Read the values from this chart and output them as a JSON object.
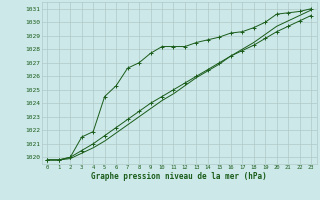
{
  "title": "Graphe pression niveau de la mer (hPa)",
  "background_color": "#cce8e8",
  "grid_color": "#b0c8c8",
  "line_color": "#1a5c1a",
  "xlim": [
    -0.5,
    23.5
  ],
  "ylim": [
    1019.5,
    1031.5
  ],
  "xticks": [
    0,
    1,
    2,
    3,
    4,
    5,
    6,
    7,
    8,
    9,
    10,
    11,
    12,
    13,
    14,
    15,
    16,
    17,
    18,
    19,
    20,
    21,
    22,
    23
  ],
  "yticks": [
    1020,
    1021,
    1022,
    1023,
    1024,
    1025,
    1026,
    1027,
    1028,
    1029,
    1030,
    1031
  ],
  "series1_x": [
    0,
    1,
    2,
    3,
    4,
    5,
    6,
    7,
    8,
    9,
    10,
    11,
    12,
    13,
    14,
    15,
    16,
    17,
    18,
    19,
    20,
    21,
    22,
    23
  ],
  "series1_y": [
    1019.8,
    1019.8,
    1020.0,
    1021.5,
    1021.9,
    1024.5,
    1025.3,
    1026.6,
    1027.0,
    1027.7,
    1028.2,
    1028.2,
    1028.2,
    1028.5,
    1028.7,
    1028.9,
    1029.2,
    1029.3,
    1029.6,
    1030.0,
    1030.6,
    1030.7,
    1030.8,
    1031.0
  ],
  "series2_x": [
    0,
    1,
    2,
    3,
    4,
    5,
    6,
    7,
    8,
    9,
    10,
    11,
    12,
    13,
    14,
    15,
    16,
    17,
    18,
    19,
    20,
    21,
    22,
    23
  ],
  "series2_y": [
    1019.8,
    1019.8,
    1020.0,
    1020.5,
    1021.0,
    1021.6,
    1022.2,
    1022.8,
    1023.4,
    1024.0,
    1024.5,
    1025.0,
    1025.5,
    1026.0,
    1026.5,
    1027.0,
    1027.5,
    1027.9,
    1028.3,
    1028.8,
    1029.3,
    1029.7,
    1030.1,
    1030.5
  ],
  "series3_x": [
    0,
    1,
    2,
    3,
    4,
    5,
    6,
    7,
    8,
    9,
    10,
    11,
    12,
    13,
    14,
    15,
    16,
    17,
    18,
    19,
    20,
    21,
    22,
    23
  ],
  "series3_y": [
    1019.8,
    1019.8,
    1019.9,
    1020.3,
    1020.7,
    1021.2,
    1021.8,
    1022.4,
    1023.0,
    1023.6,
    1024.2,
    1024.7,
    1025.3,
    1025.9,
    1026.4,
    1026.9,
    1027.5,
    1028.0,
    1028.5,
    1029.1,
    1029.7,
    1030.1,
    1030.5,
    1030.9
  ]
}
